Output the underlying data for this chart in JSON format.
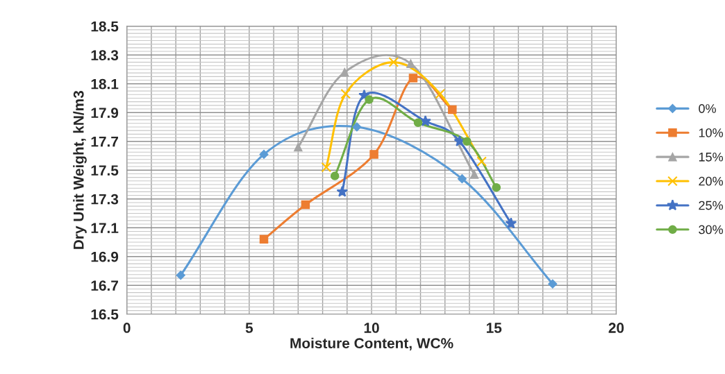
{
  "chart_data": {
    "type": "line",
    "xlabel": "Moisture Content, WC%",
    "ylabel": "Dry Unit Weight, kN/m3",
    "xlim": [
      0,
      20
    ],
    "xticks": [
      0,
      5,
      10,
      15,
      20
    ],
    "ylim": [
      16.5,
      18.5
    ],
    "yticks": [
      {
        "value": 16.5,
        "label": "16.5"
      },
      {
        "value": 16.7,
        "label": "16.7"
      },
      {
        "value": 16.9,
        "label": "16.9"
      },
      {
        "value": 17.1,
        "label": "17.1"
      },
      {
        "value": 17.3,
        "label": "17.3"
      },
      {
        "value": 17.5,
        "label": "17.5"
      },
      {
        "value": 17.7,
        "label": "17.7"
      },
      {
        "value": 17.9,
        "label": "17.9"
      },
      {
        "value": 18.1,
        "label": "18.1"
      },
      {
        "value": 18.3,
        "label": "18.3"
      },
      {
        "value": 18.5,
        "label": "18.5"
      }
    ],
    "grid": true,
    "legend": "right",
    "series": [
      {
        "name": "0%",
        "color": "#5b9bd5",
        "marker": "diamond",
        "x": [
          2.2,
          5.6,
          9.4,
          13.7,
          17.4
        ],
        "values": [
          16.77,
          17.61,
          17.8,
          17.44,
          16.71
        ]
      },
      {
        "name": "10%",
        "color": "#ed7d31",
        "marker": "square",
        "x": [
          5.6,
          7.3,
          10.1,
          11.7,
          13.3
        ],
        "values": [
          17.02,
          17.26,
          17.61,
          18.14,
          17.92
        ]
      },
      {
        "name": "15%",
        "color": "#a5a5a5",
        "marker": "triangle",
        "x": [
          7.0,
          8.9,
          11.6,
          14.2
        ],
        "values": [
          17.66,
          18.18,
          18.24,
          17.47
        ]
      },
      {
        "name": "20%",
        "color": "#ffc000",
        "marker": "cross",
        "x": [
          8.15,
          8.94,
          10.9,
          12.8,
          14.5
        ],
        "values": [
          17.52,
          18.03,
          18.25,
          18.03,
          17.56
        ]
      },
      {
        "name": "25%",
        "color": "#4472c4",
        "marker": "star",
        "x": [
          8.8,
          9.7,
          12.2,
          13.6,
          15.7
        ],
        "values": [
          17.35,
          18.02,
          17.84,
          17.7,
          17.13
        ]
      },
      {
        "name": "30%",
        "color": "#70ad47",
        "marker": "circle",
        "x": [
          8.5,
          9.9,
          11.9,
          13.9,
          15.1
        ],
        "values": [
          17.46,
          17.99,
          17.83,
          17.7,
          17.38
        ]
      }
    ]
  }
}
